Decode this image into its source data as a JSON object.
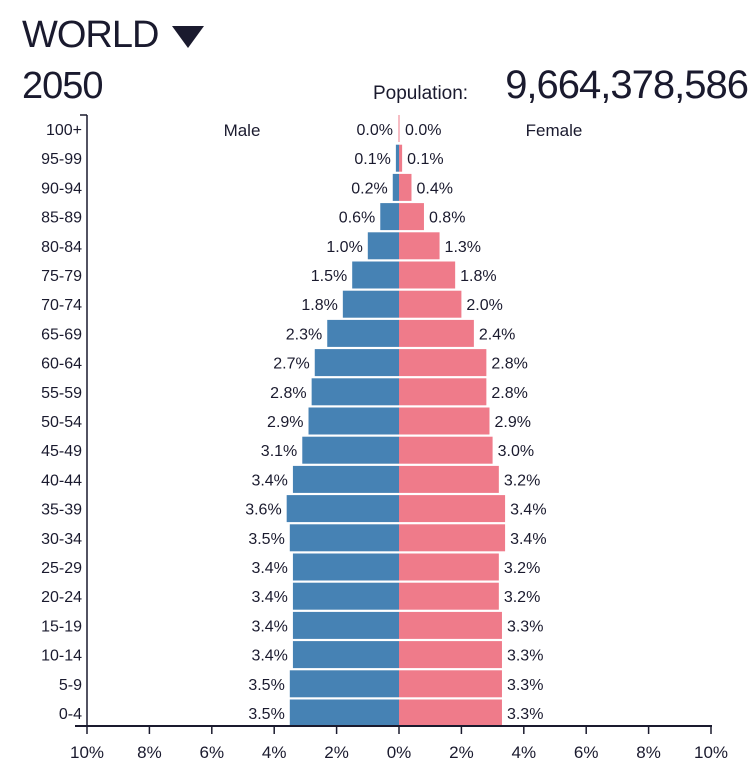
{
  "header": {
    "region": "WORLD",
    "year": "2050",
    "population_label": "Population:",
    "population_value": "9,664,378,586"
  },
  "colors": {
    "male": "#4682b4",
    "female": "#ef7b8a",
    "text": "#1a1a2e"
  },
  "chart_data": {
    "type": "bar",
    "orientation": "horizontal-pyramid",
    "series_labels": {
      "male": "Male",
      "female": "Female"
    },
    "categories": [
      "100+",
      "95-99",
      "90-94",
      "85-89",
      "80-84",
      "75-79",
      "70-74",
      "65-69",
      "60-64",
      "55-59",
      "50-54",
      "45-49",
      "40-44",
      "35-39",
      "30-34",
      "25-29",
      "20-24",
      "15-19",
      "10-14",
      "5-9",
      "0-4"
    ],
    "series": [
      {
        "name": "Male",
        "values": [
          0.0,
          0.1,
          0.2,
          0.6,
          1.0,
          1.5,
          1.8,
          2.3,
          2.7,
          2.8,
          2.9,
          3.1,
          3.4,
          3.6,
          3.5,
          3.4,
          3.4,
          3.4,
          3.4,
          3.5,
          3.5
        ]
      },
      {
        "name": "Female",
        "values": [
          0.0,
          0.1,
          0.4,
          0.8,
          1.3,
          1.8,
          2.0,
          2.4,
          2.8,
          2.8,
          2.9,
          3.0,
          3.2,
          3.4,
          3.4,
          3.2,
          3.2,
          3.3,
          3.3,
          3.3,
          3.3
        ]
      }
    ],
    "xticks": [
      "10%",
      "8%",
      "6%",
      "4%",
      "2%",
      "0%",
      "2%",
      "4%",
      "6%",
      "8%",
      "10%"
    ],
    "xlim": [
      -10,
      10
    ],
    "xlabel": "",
    "ylabel": "",
    "unit": "%"
  }
}
